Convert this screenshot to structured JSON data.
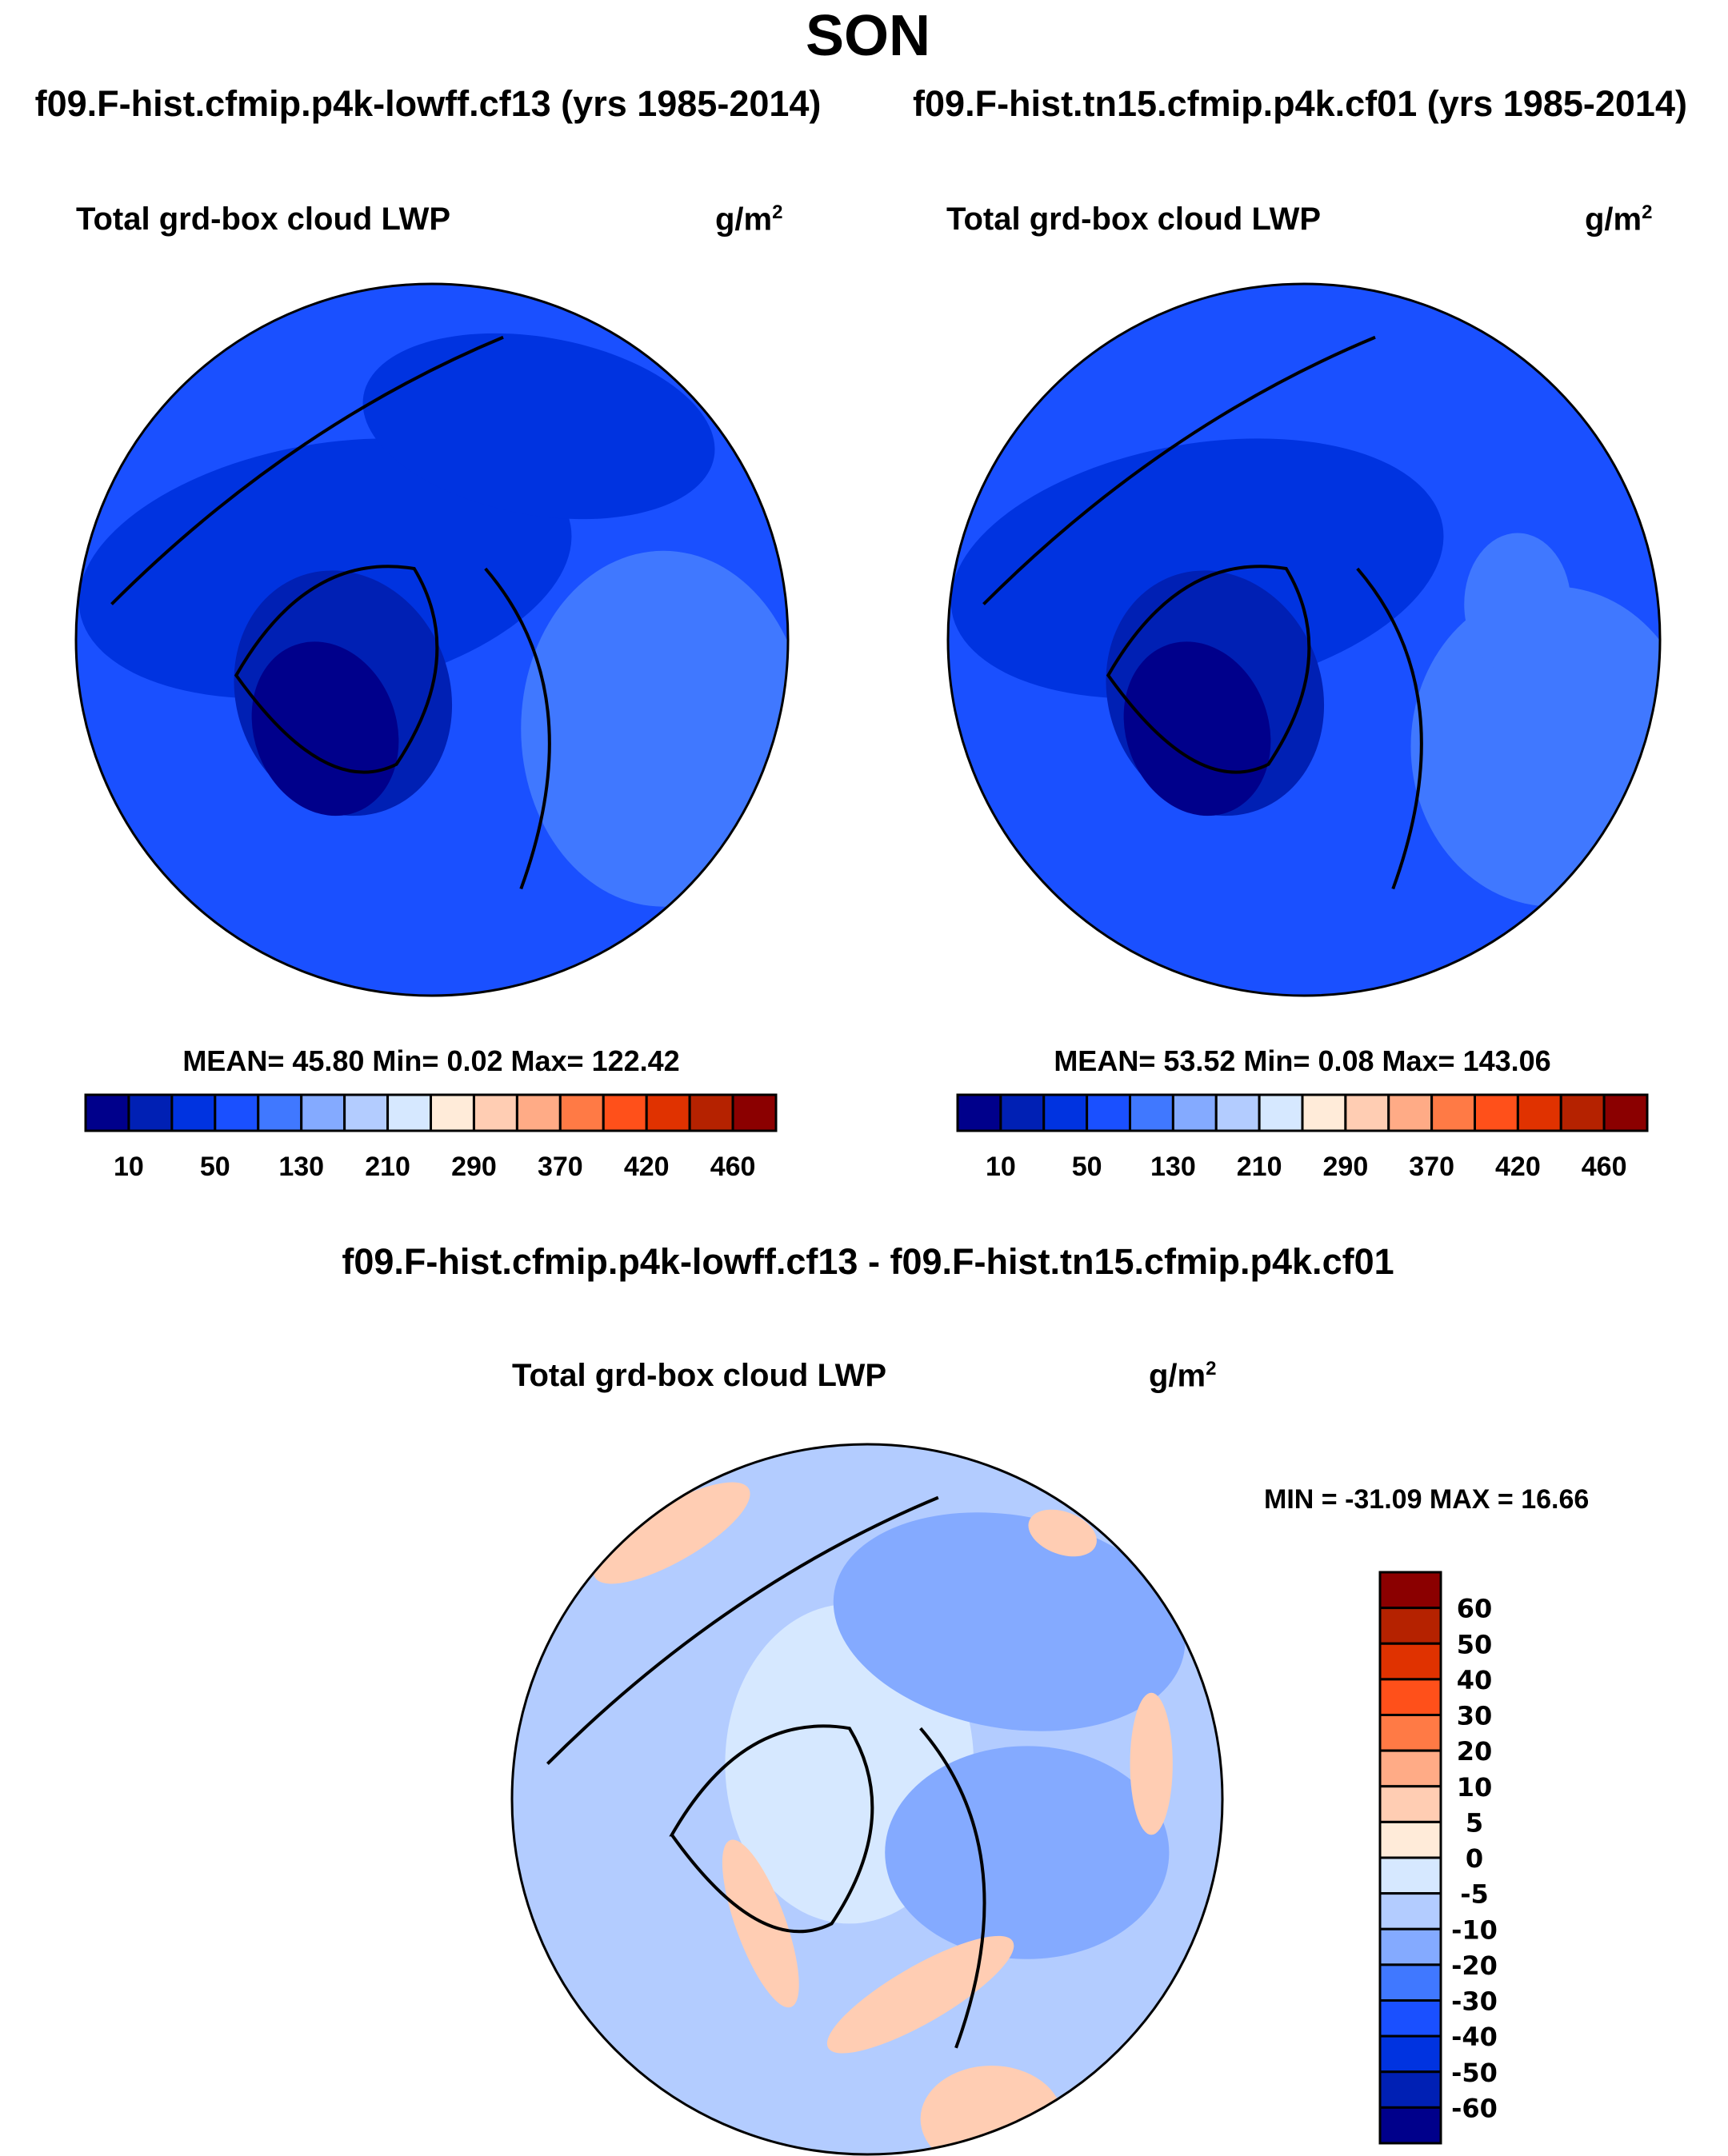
{
  "title": "SON",
  "chart_data": [
    {
      "type": "heatmap",
      "projection": "north-polar-stereographic",
      "case_title": "f09.F-hist.cfmip.p4k-lowff.cf13 (yrs 1985-2014)",
      "variable": "Total grd-box cloud LWP",
      "units": "g/m",
      "units_sup": "2",
      "stats": "MEAN=  45.80  Min=   0.02  Max= 122.42",
      "mean": 45.8,
      "min": 0.02,
      "max": 122.42,
      "colorbar": {
        "orientation": "horizontal",
        "levels": [
          "10",
          "50",
          "130",
          "210",
          "290",
          "370",
          "420",
          "460"
        ],
        "colors": [
          "#00008b",
          "#0020b4",
          "#0033e0",
          "#1a50ff",
          "#4078ff",
          "#84aaff",
          "#b3ccff",
          "#d6e8ff",
          "#ffebd9",
          "#ffcdb3",
          "#ffab86",
          "#ff7a45",
          "#ff501a",
          "#e03200",
          "#b52200",
          "#8b0000"
        ]
      }
    },
    {
      "type": "heatmap",
      "projection": "north-polar-stereographic",
      "case_title": "f09.F-hist.tn15.cfmip.p4k.cf01 (yrs 1985-2014)",
      "variable": "Total grd-box cloud LWP",
      "units": "g/m",
      "units_sup": "2",
      "stats": "MEAN=  53.52  Min=   0.08  Max= 143.06",
      "mean": 53.52,
      "min": 0.08,
      "max": 143.06,
      "colorbar": {
        "orientation": "horizontal",
        "levels": [
          "10",
          "50",
          "130",
          "210",
          "290",
          "370",
          "420",
          "460"
        ],
        "colors": [
          "#00008b",
          "#0020b4",
          "#0033e0",
          "#1a50ff",
          "#4078ff",
          "#84aaff",
          "#b3ccff",
          "#d6e8ff",
          "#ffebd9",
          "#ffcdb3",
          "#ffab86",
          "#ff7a45",
          "#ff501a",
          "#e03200",
          "#b52200",
          "#8b0000"
        ]
      }
    },
    {
      "type": "heatmap",
      "projection": "north-polar-stereographic",
      "case_title": "f09.F-hist.cfmip.p4k-lowff.cf13 - f09.F-hist.tn15.cfmip.p4k.cf01",
      "variable": "Total grd-box cloud LWP",
      "units": "g/m",
      "units_sup": "2",
      "stats": "MIN = -31.09 MAX =  16.66",
      "min": -31.09,
      "max": 16.66,
      "colorbar": {
        "orientation": "vertical",
        "levels": [
          "60",
          "50",
          "40",
          "30",
          "20",
          "10",
          "5",
          "0",
          "-5",
          "-10",
          "-20",
          "-30",
          "-40",
          "-50",
          "-60"
        ],
        "colors": [
          "#8b0000",
          "#b52200",
          "#e03200",
          "#ff501a",
          "#ff7a45",
          "#ffab86",
          "#ffcdb3",
          "#ffebd9",
          "#d6e8ff",
          "#b3ccff",
          "#84aaff",
          "#4078ff",
          "#1a50ff",
          "#0033e0",
          "#0020b4",
          "#00008b"
        ]
      }
    }
  ]
}
